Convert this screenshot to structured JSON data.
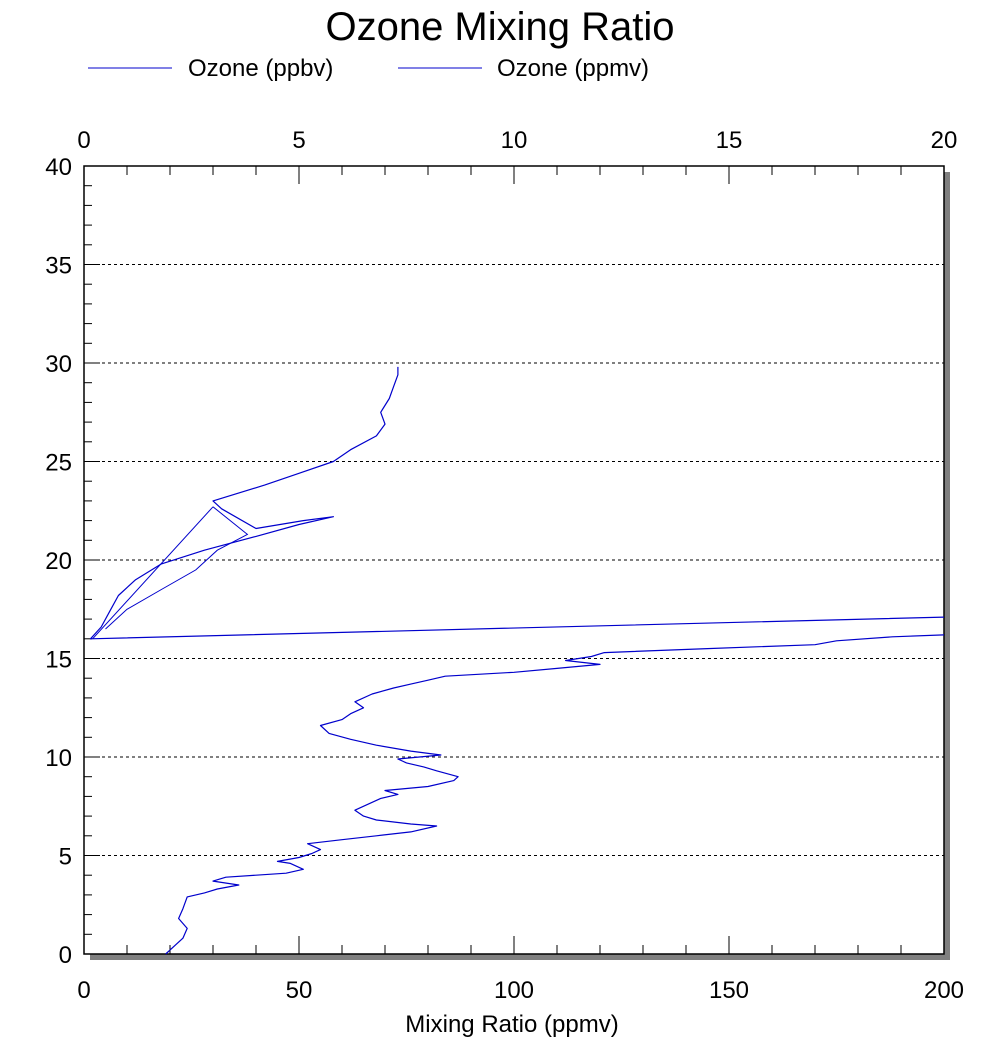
{
  "chart_data": {
    "type": "line",
    "title": "Ozone Mixing Ratio",
    "xlabel": "Mixing Ratio (ppmv)",
    "ylabel": "",
    "x_bottom": {
      "range": [
        0,
        200
      ],
      "ticks": [
        0,
        50,
        100,
        150,
        200
      ],
      "tick_labels": [
        "0",
        "50",
        "100",
        "150",
        "200"
      ]
    },
    "x_top": {
      "range": [
        0,
        20
      ],
      "ticks": [
        0,
        5,
        10,
        15,
        20
      ],
      "tick_labels": [
        "0",
        "5",
        "10",
        "15",
        "20"
      ]
    },
    "y": {
      "range": [
        0,
        40
      ],
      "ticks": [
        0,
        5,
        10,
        15,
        20,
        25,
        30,
        35,
        40
      ],
      "tick_labels": [
        "0",
        "5",
        "10",
        "15",
        "20",
        "25",
        "30",
        "35",
        "40"
      ]
    },
    "grid": "horizontal dotted",
    "legend_position": "top",
    "series": [
      {
        "name": "Ozone (ppbv)",
        "color": "#0000cc",
        "axis": "bottom",
        "points": [
          [
            19,
            0
          ],
          [
            21,
            0.4
          ],
          [
            23,
            0.8
          ],
          [
            24,
            1.3
          ],
          [
            22,
            1.8
          ],
          [
            23,
            2.3
          ],
          [
            24,
            2.9
          ],
          [
            28,
            3.1
          ],
          [
            31,
            3.3
          ],
          [
            36,
            3.5
          ],
          [
            30,
            3.7
          ],
          [
            33,
            3.9
          ],
          [
            40,
            4.0
          ],
          [
            47,
            4.1
          ],
          [
            51,
            4.3
          ],
          [
            48,
            4.6
          ],
          [
            45,
            4.7
          ],
          [
            50,
            4.9
          ],
          [
            53,
            5.1
          ],
          [
            55,
            5.3
          ],
          [
            52,
            5.6
          ],
          [
            60,
            5.8
          ],
          [
            68,
            6.0
          ],
          [
            76,
            6.2
          ],
          [
            82,
            6.5
          ],
          [
            76,
            6.6
          ],
          [
            68,
            6.8
          ],
          [
            65,
            7.0
          ],
          [
            63,
            7.3
          ],
          [
            66,
            7.6
          ],
          [
            69,
            7.9
          ],
          [
            73,
            8.1
          ],
          [
            70,
            8.3
          ],
          [
            80,
            8.5
          ],
          [
            86,
            8.8
          ],
          [
            87,
            9.0
          ],
          [
            82,
            9.3
          ],
          [
            79,
            9.5
          ],
          [
            75,
            9.7
          ],
          [
            73,
            9.9
          ],
          [
            78,
            10.0
          ],
          [
            83,
            10.1
          ],
          [
            76,
            10.3
          ],
          [
            68,
            10.6
          ],
          [
            62,
            10.9
          ],
          [
            57,
            11.2
          ],
          [
            55,
            11.6
          ],
          [
            60,
            11.9
          ],
          [
            62,
            12.2
          ],
          [
            65,
            12.5
          ],
          [
            63,
            12.8
          ],
          [
            67,
            13.2
          ],
          [
            72,
            13.5
          ],
          [
            76,
            13.7
          ],
          [
            80,
            13.9
          ],
          [
            84,
            14.1
          ],
          [
            100,
            14.3
          ],
          [
            110,
            14.5
          ],
          [
            120,
            14.7
          ],
          [
            112,
            14.9
          ],
          [
            118,
            15.1
          ],
          [
            121,
            15.3
          ],
          [
            145,
            15.5
          ],
          [
            170,
            15.7
          ],
          [
            175,
            15.9
          ],
          [
            188,
            16.1
          ],
          [
            200,
            16.2
          ]
        ]
      },
      {
        "name": "Ozone (ppmv)",
        "color": "#0000cc",
        "axis": "top",
        "points": [
          [
            20,
            17.1
          ],
          [
            0.15,
            16.0
          ],
          [
            0.4,
            16.6
          ],
          [
            0.6,
            17.4
          ],
          [
            0.8,
            18.2
          ],
          [
            1.2,
            19.0
          ],
          [
            1.8,
            19.8
          ],
          [
            2.8,
            20.5
          ],
          [
            4,
            21.2
          ],
          [
            5,
            21.8
          ],
          [
            5.8,
            22.2
          ],
          [
            5.1,
            22.0
          ],
          [
            4,
            21.6
          ],
          [
            3.2,
            22.6
          ],
          [
            3.0,
            23.0
          ],
          [
            4.2,
            23.8
          ],
          [
            5,
            24.4
          ],
          [
            5.8,
            25.0
          ],
          [
            6.2,
            25.6
          ],
          [
            6.8,
            26.3
          ],
          [
            7.0,
            26.9
          ],
          [
            6.9,
            27.5
          ],
          [
            7.1,
            28.2
          ],
          [
            7.2,
            28.8
          ],
          [
            7.3,
            29.4
          ],
          [
            7.3,
            29.8
          ]
        ]
      }
    ],
    "extra_segments_ppmv_top_axis": [
      [
        [
          0.2,
          16.0
        ],
        [
          3.0,
          22.7
        ]
      ],
      [
        [
          0.5,
          16.5
        ],
        [
          1.0,
          17.5
        ],
        [
          1.8,
          18.5
        ],
        [
          2.6,
          19.5
        ],
        [
          3.1,
          20.5
        ],
        [
          3.8,
          21.3
        ],
        [
          3.0,
          22.7
        ]
      ]
    ]
  },
  "legend": {
    "items": [
      {
        "label": "Ozone (ppbv)",
        "color": "#0000cc"
      },
      {
        "label": "Ozone (ppmv)",
        "color": "#0000cc"
      }
    ]
  }
}
